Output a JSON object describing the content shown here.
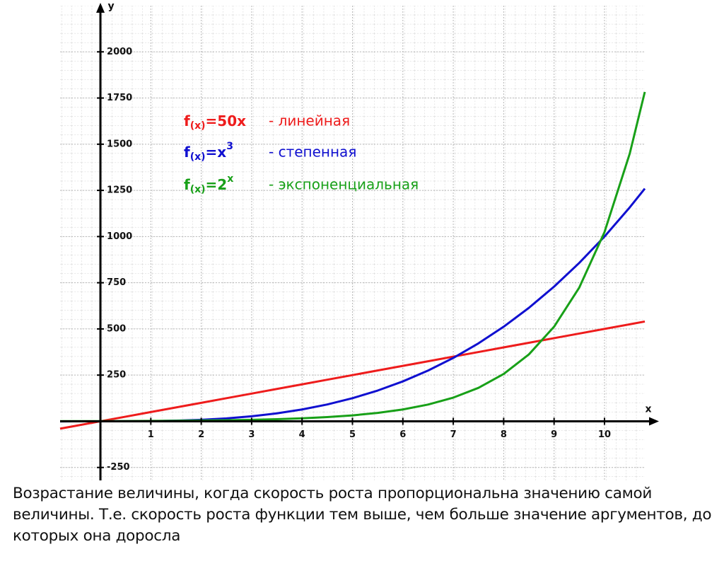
{
  "chart_data": {
    "type": "line",
    "x": [
      -0.8,
      -0.5,
      0,
      0.5,
      1,
      1.5,
      2,
      2.5,
      3,
      3.5,
      4,
      4.5,
      5,
      5.5,
      6,
      6.5,
      7,
      7.5,
      8,
      8.5,
      9,
      9.5,
      10,
      10.5,
      10.8
    ],
    "series": [
      {
        "name": "- линейная",
        "color": "#ee1c1c",
        "formula": {
          "base": "f",
          "sub": "(x)",
          "rest": "=50x"
        },
        "values": [
          -40,
          -25,
          0,
          25,
          50,
          75,
          100,
          125,
          150,
          175,
          200,
          225,
          250,
          275,
          300,
          325,
          350,
          375,
          400,
          425,
          450,
          475,
          500,
          525,
          540
        ]
      },
      {
        "name": "- степенная",
        "color": "#1010d0",
        "formula": {
          "base": "f",
          "sub": "(x)",
          "rest": "=x",
          "sup": "3"
        },
        "values": [
          -0.5,
          -0.1,
          0,
          0.1,
          1,
          3.4,
          8,
          15.6,
          27,
          42.9,
          64,
          91.1,
          125,
          166.4,
          216,
          274.6,
          343,
          421.9,
          512,
          614.1,
          729,
          857.4,
          1000,
          1157.6,
          1259.7
        ]
      },
      {
        "name": "- экспоненциальная",
        "color": "#18a018",
        "formula": {
          "base": "f",
          "sub": "(x)",
          "rest": "=2",
          "sup": "x"
        },
        "values": [
          0.57,
          0.71,
          1,
          1.41,
          2,
          2.83,
          4,
          5.66,
          8,
          11.31,
          16,
          22.63,
          32,
          45.25,
          64,
          90.51,
          128,
          181.02,
          256,
          362.04,
          512,
          724.08,
          1024,
          1448.15,
          1782.9
        ]
      }
    ],
    "xlabel": "x",
    "ylabel": "y",
    "xlim": [
      -0.8,
      10.8
    ],
    "ylim": [
      -320,
      2250
    ],
    "xticks": [
      1,
      2,
      3,
      4,
      5,
      6,
      7,
      8,
      9,
      10
    ],
    "yticks": [
      -250,
      250,
      500,
      750,
      1000,
      1250,
      1500,
      1750,
      2000
    ],
    "grid": true
  },
  "caption": "Возрастание величины, когда скорость роста пропорциональна значению самой величины. Т.е. скорость роста функции тем выше, чем больше значение аргументов, до которых она доросла"
}
